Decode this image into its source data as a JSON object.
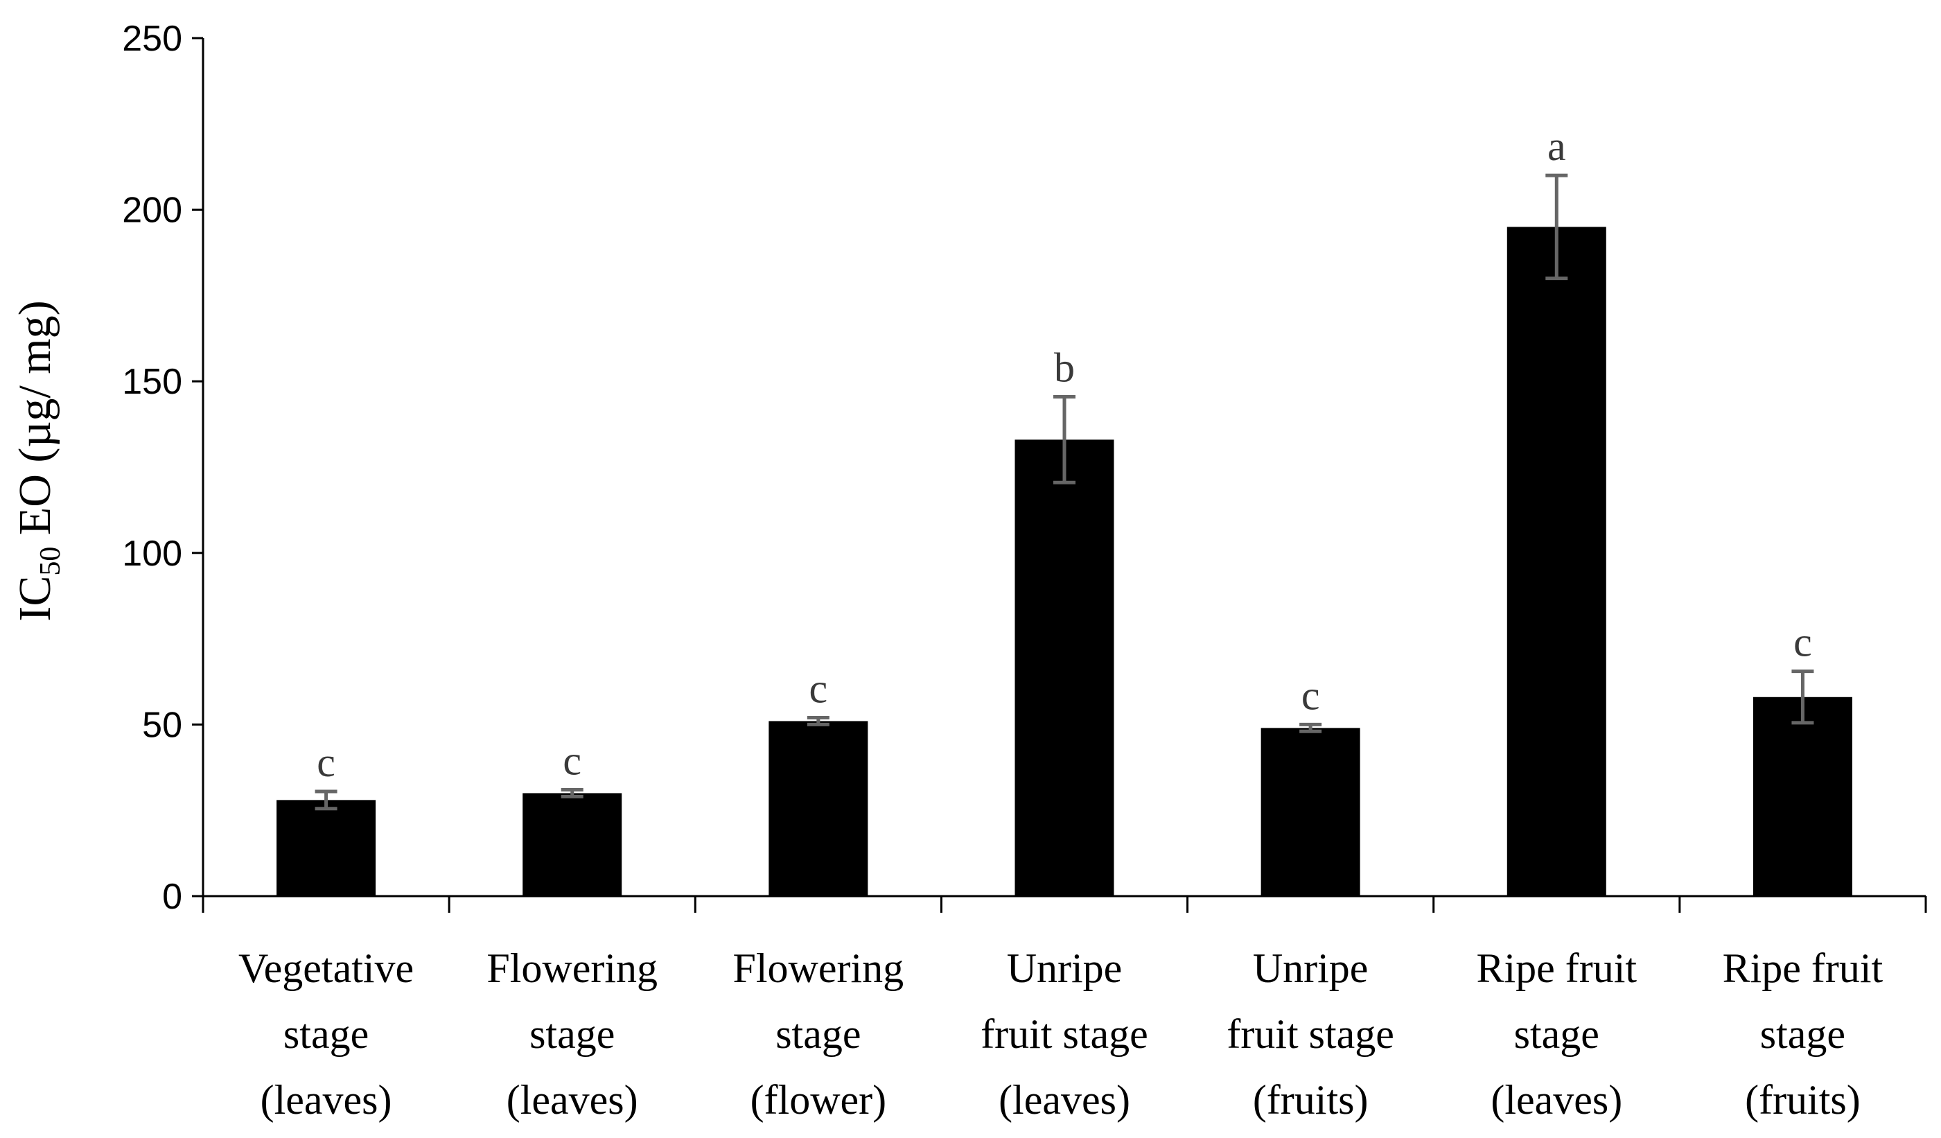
{
  "chart_data": {
    "type": "bar",
    "categories": [
      [
        "Vegetative",
        "stage",
        "(leaves)"
      ],
      [
        "Flowering",
        "stage",
        "(leaves)"
      ],
      [
        "Flowering",
        "stage",
        "(flower)"
      ],
      [
        "Unripe",
        "fruit stage",
        "(leaves)"
      ],
      [
        "Unripe",
        "fruit stage",
        "(fruits)"
      ],
      [
        "Ripe fruit",
        "stage",
        "(leaves)"
      ],
      [
        "Ripe fruit",
        "stage",
        "(fruits)"
      ]
    ],
    "values": [
      28,
      30,
      51,
      133,
      49,
      195,
      58
    ],
    "errors": [
      2.5,
      1,
      1,
      12.5,
      1,
      15,
      7.5
    ],
    "significance": [
      "c",
      "c",
      "c",
      "b",
      "c",
      "a",
      "c"
    ],
    "ylabel": {
      "main": "IC",
      "sub": "50",
      "rest": " EO (µg/ mg)"
    },
    "ylim": [
      0,
      250
    ],
    "yticks": [
      0,
      50,
      100,
      150,
      200,
      250
    ],
    "bar_color": "#000000",
    "error_color": "#666666",
    "grid": false
  }
}
